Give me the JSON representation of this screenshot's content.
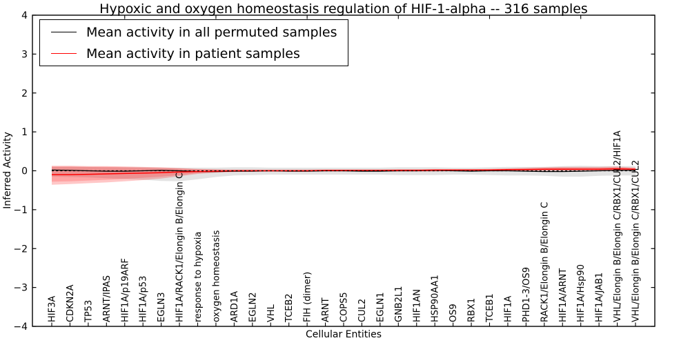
{
  "legend": {
    "items": [
      {
        "label": "Mean activity in all permuted samples",
        "color": "#000000"
      },
      {
        "label": "Mean activity in patient samples",
        "color": "#ff0000"
      }
    ],
    "position": "upper left"
  },
  "chart_data": {
    "type": "line",
    "title": "Hypoxic and oxygen homeostasis regulation of HIF-1-alpha -- 316 samples",
    "xlabel": "Cellular Entities",
    "ylabel": "Inferred Activity",
    "ylim": [
      -4,
      4
    ],
    "yticks": [
      4,
      3,
      2,
      1,
      0,
      -1,
      -2,
      -3,
      -4
    ],
    "grid": false,
    "zero_line": 0,
    "top_tick_indices": [
      4,
      9,
      14,
      19,
      24,
      29
    ],
    "categories": [
      "HIF3A",
      "CDKN2A",
      "TP53",
      "ARNT/IPAS",
      "HIF1A/p19ARF",
      "HIF1A/p53",
      "EGLN3",
      "HIF1A/RACK1/Elongin B/Elongin C",
      "response to hypoxia",
      "oxygen homeostasis",
      "ARD1A",
      "EGLN2",
      "VHL",
      "TCEB2",
      "FIH (dimer)",
      "ARNT",
      "COPS5",
      "CUL2",
      "EGLN1",
      "GNB2L1",
      "HIF1AN",
      "HSP90AA1",
      "OS9",
      "RBX1",
      "TCEB1",
      "HIF1A",
      "PHD1-3/OS9",
      "RACK1/Elongin B/Elongin C",
      "HIF1A/ARNT",
      "HIF1A/Hsp90",
      "HIF1A/JAB1",
      "VHL/Elongin B/Elongin C/RBX1/CUL2/HIF1A",
      "VHL/Elongin B/Elongin C/RBX1/CUL2"
    ],
    "series": [
      {
        "name": "Mean activity in all permuted samples",
        "color": "#000000",
        "values": [
          0.02,
          0.01,
          0,
          -0.01,
          -0.01,
          0,
          0.01,
          0,
          -0.02,
          -0.02,
          -0.01,
          -0.01,
          0,
          -0.01,
          -0.01,
          0,
          0,
          -0.01,
          -0.01,
          0,
          0,
          0.01,
          0,
          -0.01,
          0,
          0,
          -0.01,
          -0.02,
          -0.02,
          -0.01,
          0,
          0.01,
          0.01
        ]
      },
      {
        "name": "Mean activity in patient samples",
        "color": "#ff0000",
        "values": [
          -0.1,
          -0.1,
          -0.09,
          -0.08,
          -0.07,
          -0.06,
          -0.05,
          -0.03,
          -0.02,
          -0.01,
          0,
          0,
          0,
          0,
          0,
          0.01,
          0.01,
          0.01,
          0.01,
          0.01,
          0.01,
          0.02,
          0.02,
          0.02,
          0.02,
          0.03,
          0.03,
          0.04,
          0.04,
          0.04,
          0.04,
          0.05,
          0.04
        ]
      }
    ],
    "bands": [
      {
        "name": "permuted-range",
        "color": "rgba(0,0,0,0.11)",
        "upper": [
          0.1,
          0.1,
          0.1,
          0.09,
          0.09,
          0.09,
          0.08,
          0.08,
          0.08,
          0.08,
          0.09,
          0.09,
          0.08,
          0.08,
          0.08,
          0.08,
          0.08,
          0.08,
          0.08,
          0.09,
          0.09,
          0.09,
          0.08,
          0.08,
          0.09,
          0.1,
          0.1,
          0.1,
          0.12,
          0.13,
          0.12,
          0.12,
          0.12
        ],
        "lower": [
          -0.15,
          -0.16,
          -0.17,
          -0.19,
          -0.21,
          -0.23,
          -0.26,
          -0.27,
          -0.22,
          -0.16,
          -0.12,
          -0.11,
          -0.1,
          -0.1,
          -0.1,
          -0.1,
          -0.1,
          -0.1,
          -0.1,
          -0.11,
          -0.11,
          -0.11,
          -0.1,
          -0.1,
          -0.11,
          -0.12,
          -0.12,
          -0.13,
          -0.15,
          -0.15,
          -0.13,
          -0.12,
          -0.12
        ]
      },
      {
        "name": "patient-range-outer",
        "color": "rgba(255,0,0,0.22)",
        "upper": [
          0.13,
          0.13,
          0.12,
          0.12,
          0.11,
          0.1,
          0.09,
          0.07,
          0.05,
          0.04,
          0.03,
          0.03,
          0.03,
          0.03,
          0.03,
          0.03,
          0.03,
          0.03,
          0.03,
          0.04,
          0.04,
          0.04,
          0.04,
          0.04,
          0.05,
          0.06,
          0.08,
          0.09,
          0.1,
          0.1,
          0.1,
          0.11,
          0.08
        ],
        "lower": [
          -0.36,
          -0.34,
          -0.32,
          -0.3,
          -0.27,
          -0.24,
          -0.2,
          -0.14,
          -0.08,
          -0.05,
          -0.03,
          -0.02,
          -0.02,
          -0.02,
          -0.02,
          -0.02,
          -0.02,
          -0.02,
          -0.02,
          -0.02,
          -0.02,
          -0.02,
          -0.01,
          -0.01,
          -0.01,
          -0.01,
          0,
          0,
          0,
          0,
          0,
          0.01,
          0
        ]
      },
      {
        "name": "patient-range-inner",
        "color": "rgba(255,0,0,0.18)",
        "upper": [
          0.11,
          0.11,
          0.1,
          0.1,
          0.09,
          0.08,
          0.07,
          0.06,
          0.04,
          0.03,
          0.02,
          0.02,
          0.02,
          0.02,
          0.02,
          0.02,
          0.02,
          0.02,
          0.02,
          0.03,
          0.03,
          0.03,
          0.03,
          0.03,
          0.04,
          0.05,
          0.06,
          0.07,
          0.08,
          0.08,
          0.08,
          0.09,
          0.06
        ],
        "lower": [
          -0.28,
          -0.27,
          -0.25,
          -0.23,
          -0.21,
          -0.18,
          -0.15,
          -0.11,
          -0.06,
          -0.04,
          -0.02,
          -0.01,
          -0.01,
          -0.01,
          -0.01,
          -0.01,
          -0.01,
          -0.01,
          -0.01,
          -0.01,
          -0.01,
          -0.01,
          0,
          0,
          0,
          0,
          0.01,
          0.01,
          0.01,
          0.01,
          0.01,
          0.02,
          0.01
        ]
      }
    ]
  }
}
